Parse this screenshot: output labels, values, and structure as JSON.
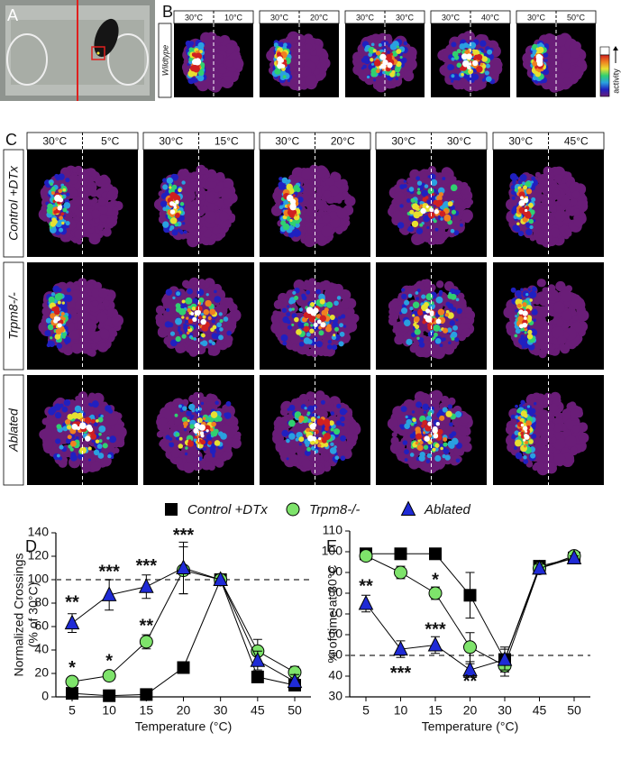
{
  "panels": {
    "labels": [
      "A",
      "B",
      "C",
      "D",
      "E"
    ]
  },
  "wildtype": {
    "row_label": "Wildtype",
    "colorbar_label": "activity",
    "headers": [
      [
        "30°C",
        "10°C"
      ],
      [
        "30°C",
        "20°C"
      ],
      [
        "30°C",
        "30°C"
      ],
      [
        "30°C",
        "40°C"
      ],
      [
        "30°C",
        "50°C"
      ]
    ]
  },
  "ablation": {
    "row_labels": [
      "Control +DTx",
      "Trpm8-/-",
      "Ablated"
    ],
    "headers": [
      [
        "30°C",
        "5°C"
      ],
      [
        "30°C",
        "15°C"
      ],
      [
        "30°C",
        "20°C"
      ],
      [
        "30°C",
        "30°C"
      ],
      [
        "30°C",
        "45°C"
      ]
    ]
  },
  "chart_data": [
    {
      "type": "line",
      "ylabel": [
        "Normalized Crossings",
        "(% of 30°C)"
      ],
      "xlabel": "Temperature (°C)",
      "categories": [
        "5",
        "10",
        "15",
        "20",
        "30",
        "45",
        "50"
      ],
      "ylim": [
        0,
        140
      ],
      "yticks": [
        0,
        20,
        40,
        60,
        80,
        100,
        120,
        140
      ],
      "hline": 100,
      "series": [
        {
          "name": "Control +DTx",
          "marker": "square",
          "color": "#000000",
          "values": [
            3,
            1,
            2,
            25,
            100,
            17,
            10
          ],
          "errors": [
            2,
            1,
            1,
            5,
            0,
            3,
            3
          ]
        },
        {
          "name": "Trpm8-/-",
          "marker": "circle",
          "color": "#7ee36b",
          "values": [
            13,
            18,
            47,
            108,
            100,
            39,
            21
          ],
          "errors": [
            3,
            4,
            6,
            20,
            0,
            10,
            5
          ]
        },
        {
          "name": "Ablated",
          "marker": "triangle",
          "color": "#1f2bd6",
          "values": [
            63,
            87,
            94,
            110,
            100,
            31,
            13
          ],
          "errors": [
            8,
            13,
            10,
            22,
            0,
            8,
            6
          ]
        }
      ],
      "annotations": [
        {
          "text": "*",
          "x": "5",
          "y": 24
        },
        {
          "text": "**",
          "x": "5",
          "y": 80
        },
        {
          "text": "*",
          "x": "10",
          "y": 30
        },
        {
          "text": "***",
          "x": "10",
          "y": 106
        },
        {
          "text": "**",
          "x": "15",
          "y": 60
        },
        {
          "text": "***",
          "x": "15",
          "y": 111
        },
        {
          "text": "***",
          "x": "20",
          "y": 137
        }
      ]
    },
    {
      "type": "line",
      "ylabel": [
        "% of time at 30°C"
      ],
      "xlabel": "Temperature (°C)",
      "categories": [
        "5",
        "10",
        "15",
        "20",
        "30",
        "45",
        "50"
      ],
      "ylim": [
        30,
        110
      ],
      "yticks": [
        30,
        40,
        50,
        60,
        70,
        80,
        90,
        100,
        110
      ],
      "hline": 50,
      "series": [
        {
          "name": "Control +DTx",
          "marker": "square",
          "color": "#000000",
          "values": [
            99,
            99,
            99,
            79,
            48,
            93,
            97
          ],
          "errors": [
            1,
            1,
            1,
            11,
            6,
            2,
            2
          ]
        },
        {
          "name": "Trpm8-/-",
          "marker": "circle",
          "color": "#7ee36b",
          "values": [
            98,
            90,
            80,
            54,
            45,
            92,
            98
          ],
          "errors": [
            2,
            3,
            3,
            7,
            5,
            2,
            1
          ]
        },
        {
          "name": "Ablated",
          "marker": "triangle",
          "color": "#1f2bd6",
          "values": [
            75,
            53,
            55,
            43,
            48,
            92,
            97
          ],
          "errors": [
            4,
            4,
            4,
            3,
            5,
            2,
            1
          ]
        }
      ],
      "annotations": [
        {
          "text": "**",
          "x": "5",
          "y": 83
        },
        {
          "text": "***",
          "x": "10",
          "y": 41
        },
        {
          "text": "*",
          "x": "15",
          "y": 86
        },
        {
          "text": "***",
          "x": "15",
          "y": 62
        },
        {
          "text": "**",
          "x": "20",
          "y": 37
        }
      ]
    }
  ]
}
